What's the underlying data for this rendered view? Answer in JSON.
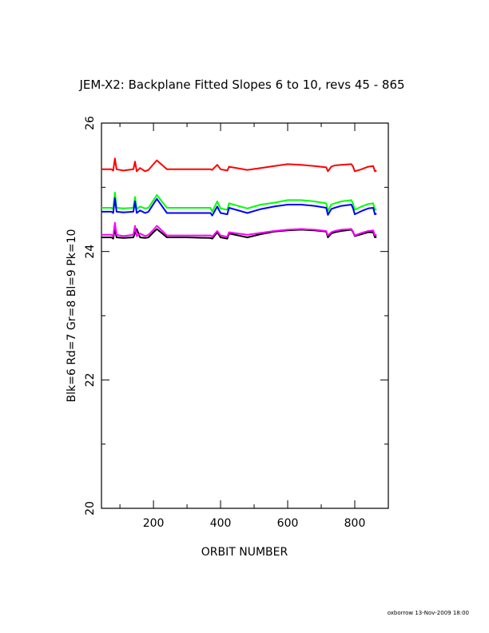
{
  "chart_data": {
    "type": "line",
    "title": "JEM-X2: Backplane Fitted Slopes 6 to 10, revs 45 - 865",
    "xlabel": "ORBIT NUMBER",
    "ylabel": "Blk=6 Rd=7 Gr=8 Bl=9 Pk=10",
    "xlim": [
      45,
      900
    ],
    "ylim": [
      20,
      26
    ],
    "x_ticks": [
      200,
      400,
      600,
      800
    ],
    "x_tick_labels": [
      "200",
      "400",
      "600",
      "800"
    ],
    "y_ticks": [
      20,
      22,
      24,
      26
    ],
    "y_tick_labels": [
      "20",
      "22",
      "24",
      "26"
    ],
    "grid": false,
    "series": [
      {
        "color": "#000000",
        "x": [
          45,
          75,
          80,
          85,
          90,
          110,
          140,
          150,
          160,
          175,
          185,
          200,
          210,
          240,
          300,
          370,
          375,
          390,
          400,
          420,
          425,
          480,
          520,
          560,
          600,
          640,
          680,
          715,
          720,
          730,
          740,
          760,
          790,
          795,
          800,
          820,
          840,
          855,
          860,
          865
        ],
        "values": [
          24.22,
          24.22,
          24.2,
          24.35,
          24.22,
          24.21,
          24.22,
          24.35,
          24.22,
          24.21,
          24.22,
          24.3,
          24.35,
          24.22,
          24.22,
          24.21,
          24.2,
          24.3,
          24.22,
          24.2,
          24.28,
          24.22,
          24.27,
          24.31,
          24.33,
          24.34,
          24.33,
          24.31,
          24.22,
          24.28,
          24.3,
          24.32,
          24.34,
          24.3,
          24.24,
          24.27,
          24.3,
          24.3,
          24.22,
          24.23
        ]
      },
      {
        "color": "#ff0000",
        "x": [
          45,
          75,
          80,
          85,
          90,
          110,
          140,
          145,
          150,
          160,
          175,
          185,
          200,
          210,
          240,
          300,
          370,
          375,
          390,
          400,
          420,
          425,
          480,
          520,
          560,
          600,
          640,
          680,
          715,
          720,
          730,
          740,
          760,
          790,
          795,
          800,
          820,
          840,
          855,
          860,
          865
        ],
        "values": [
          25.28,
          25.28,
          25.26,
          25.45,
          25.28,
          25.26,
          25.28,
          25.4,
          25.25,
          25.3,
          25.25,
          25.27,
          25.36,
          25.42,
          25.28,
          25.28,
          25.28,
          25.27,
          25.35,
          25.28,
          25.26,
          25.32,
          25.27,
          25.3,
          25.33,
          25.36,
          25.35,
          25.33,
          25.31,
          25.25,
          25.32,
          25.34,
          25.35,
          25.36,
          25.32,
          25.25,
          25.28,
          25.32,
          25.33,
          25.25,
          25.26
        ]
      },
      {
        "color": "#00ff00",
        "x": [
          45,
          75,
          80,
          85,
          90,
          110,
          140,
          145,
          150,
          160,
          175,
          185,
          200,
          210,
          240,
          300,
          370,
          375,
          390,
          400,
          420,
          425,
          480,
          520,
          560,
          600,
          640,
          680,
          715,
          720,
          730,
          740,
          760,
          790,
          795,
          800,
          820,
          840,
          855,
          860,
          865
        ],
        "values": [
          24.68,
          24.68,
          24.66,
          24.92,
          24.68,
          24.67,
          24.68,
          24.85,
          24.66,
          24.7,
          24.67,
          24.68,
          24.8,
          24.88,
          24.68,
          24.68,
          24.68,
          24.62,
          24.78,
          24.67,
          24.65,
          24.75,
          24.67,
          24.73,
          24.76,
          24.8,
          24.8,
          24.78,
          24.75,
          24.63,
          24.73,
          24.75,
          24.78,
          24.8,
          24.74,
          24.65,
          24.7,
          24.74,
          24.75,
          24.65,
          24.66
        ]
      },
      {
        "color": "#0000ff",
        "x": [
          45,
          75,
          80,
          85,
          90,
          110,
          140,
          145,
          150,
          160,
          175,
          185,
          200,
          210,
          240,
          300,
          370,
          375,
          390,
          400,
          420,
          425,
          480,
          520,
          560,
          600,
          640,
          680,
          715,
          720,
          730,
          740,
          760,
          790,
          795,
          800,
          820,
          840,
          855,
          860,
          865
        ],
        "values": [
          24.62,
          24.62,
          24.6,
          24.83,
          24.62,
          24.61,
          24.62,
          24.78,
          24.6,
          24.64,
          24.6,
          24.62,
          24.74,
          24.82,
          24.6,
          24.6,
          24.6,
          24.56,
          24.7,
          24.6,
          24.58,
          24.68,
          24.6,
          24.66,
          24.7,
          24.73,
          24.73,
          24.71,
          24.68,
          24.57,
          24.66,
          24.68,
          24.71,
          24.73,
          24.67,
          24.58,
          24.63,
          24.67,
          24.68,
          24.58,
          24.59
        ]
      },
      {
        "color": "#ff00ff",
        "x": [
          45,
          75,
          80,
          85,
          90,
          110,
          140,
          145,
          150,
          160,
          175,
          185,
          200,
          210,
          240,
          300,
          370,
          375,
          390,
          400,
          420,
          425,
          480,
          520,
          560,
          600,
          640,
          680,
          715,
          720,
          730,
          740,
          760,
          790,
          795,
          800,
          820,
          840,
          855,
          860,
          865
        ],
        "values": [
          24.26,
          24.26,
          24.24,
          24.45,
          24.26,
          24.24,
          24.26,
          24.4,
          24.24,
          24.28,
          24.24,
          24.26,
          24.34,
          24.4,
          24.25,
          24.25,
          24.25,
          24.23,
          24.32,
          24.25,
          24.23,
          24.3,
          24.26,
          24.29,
          24.32,
          24.34,
          24.35,
          24.34,
          24.32,
          24.25,
          24.3,
          24.32,
          24.34,
          24.35,
          24.31,
          24.25,
          24.29,
          24.32,
          24.33,
          24.25,
          24.26
        ]
      }
    ]
  },
  "footer": "oxborrow 13-Nov-2009 18:00"
}
